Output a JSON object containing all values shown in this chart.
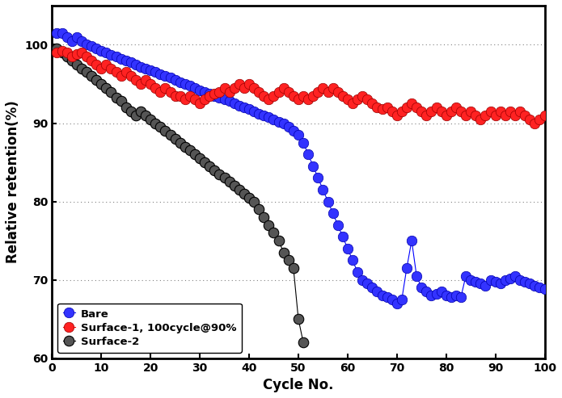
{
  "title": "",
  "xlabel": "Cycle No.",
  "ylabel": "Relative retention(%)",
  "xlim": [
    0,
    100
  ],
  "ylim": [
    60,
    105
  ],
  "yticks": [
    60,
    70,
    80,
    90,
    100
  ],
  "xticks": [
    0,
    10,
    20,
    30,
    40,
    50,
    60,
    70,
    80,
    90,
    100
  ],
  "legend_labels": [
    "Bare",
    "Surface-1, 100cycle@90%",
    "Surface-2"
  ],
  "bare_x": [
    1,
    2,
    3,
    4,
    5,
    6,
    7,
    8,
    9,
    10,
    11,
    12,
    13,
    14,
    15,
    16,
    17,
    18,
    19,
    20,
    21,
    22,
    23,
    24,
    25,
    26,
    27,
    28,
    29,
    30,
    31,
    32,
    33,
    34,
    35,
    36,
    37,
    38,
    39,
    40,
    41,
    42,
    43,
    44,
    45,
    46,
    47,
    48,
    49,
    50,
    51,
    52,
    53,
    54,
    55,
    56,
    57,
    58,
    59,
    60,
    61,
    62,
    63,
    64,
    65,
    66,
    67,
    68,
    69,
    70,
    71,
    72,
    73,
    74,
    75,
    76,
    77,
    78,
    79,
    80,
    81,
    82,
    83,
    84,
    85,
    86,
    87,
    88,
    89,
    90,
    91,
    92,
    93,
    94,
    95,
    96,
    97,
    98,
    99,
    100
  ],
  "bare_y": [
    101.5,
    101.5,
    101.0,
    100.5,
    101.0,
    100.5,
    100.0,
    99.8,
    99.5,
    99.2,
    99.0,
    98.7,
    98.5,
    98.2,
    98.0,
    97.8,
    97.5,
    97.2,
    97.0,
    96.7,
    96.5,
    96.2,
    96.0,
    95.8,
    95.5,
    95.2,
    95.0,
    94.8,
    94.5,
    94.2,
    94.0,
    93.8,
    93.5,
    93.2,
    93.0,
    92.8,
    92.5,
    92.2,
    92.0,
    91.8,
    91.5,
    91.2,
    91.0,
    90.8,
    90.5,
    90.2,
    90.0,
    89.5,
    89.0,
    88.5,
    87.5,
    86.0,
    84.5,
    83.0,
    81.5,
    80.0,
    78.5,
    77.0,
    75.5,
    74.0,
    72.5,
    71.0,
    70.0,
    69.5,
    69.0,
    68.5,
    68.0,
    67.8,
    67.5,
    67.0,
    67.5,
    71.5,
    75.0,
    70.5,
    69.0,
    68.5,
    68.0,
    68.2,
    68.5,
    68.0,
    67.8,
    68.0,
    67.8,
    70.5,
    70.0,
    69.8,
    69.5,
    69.2,
    70.0,
    69.8,
    69.5,
    70.0,
    70.2,
    70.5,
    70.0,
    69.8,
    69.5,
    69.2,
    69.0,
    68.8
  ],
  "surface1_x": [
    1,
    2,
    3,
    4,
    5,
    6,
    7,
    8,
    9,
    10,
    11,
    12,
    13,
    14,
    15,
    16,
    17,
    18,
    19,
    20,
    21,
    22,
    23,
    24,
    25,
    26,
    27,
    28,
    29,
    30,
    31,
    32,
    33,
    34,
    35,
    36,
    37,
    38,
    39,
    40,
    41,
    42,
    43,
    44,
    45,
    46,
    47,
    48,
    49,
    50,
    51,
    52,
    53,
    54,
    55,
    56,
    57,
    58,
    59,
    60,
    61,
    62,
    63,
    64,
    65,
    66,
    67,
    68,
    69,
    70,
    71,
    72,
    73,
    74,
    75,
    76,
    77,
    78,
    79,
    80,
    81,
    82,
    83,
    84,
    85,
    86,
    87,
    88,
    89,
    90,
    91,
    92,
    93,
    94,
    95,
    96,
    97,
    98,
    99,
    100
  ],
  "surface1_y": [
    99.0,
    99.2,
    99.0,
    98.5,
    98.8,
    99.0,
    98.5,
    98.0,
    97.5,
    97.0,
    97.5,
    97.0,
    96.5,
    96.0,
    96.5,
    96.0,
    95.5,
    95.0,
    95.5,
    95.0,
    94.5,
    94.0,
    94.5,
    94.0,
    93.5,
    93.5,
    93.0,
    93.5,
    93.0,
    92.5,
    93.0,
    93.5,
    93.8,
    94.0,
    94.5,
    94.0,
    94.5,
    95.0,
    94.5,
    95.0,
    94.5,
    94.0,
    93.5,
    93.0,
    93.5,
    94.0,
    94.5,
    94.0,
    93.5,
    93.0,
    93.5,
    93.0,
    93.5,
    94.0,
    94.5,
    94.0,
    94.5,
    94.0,
    93.5,
    93.0,
    92.5,
    93.0,
    93.5,
    93.0,
    92.5,
    92.0,
    91.8,
    92.0,
    91.5,
    91.0,
    91.5,
    92.0,
    92.5,
    92.0,
    91.5,
    91.0,
    91.5,
    92.0,
    91.5,
    91.0,
    91.5,
    92.0,
    91.5,
    91.0,
    91.5,
    91.0,
    90.5,
    91.0,
    91.5,
    91.0,
    91.5,
    91.0,
    91.5,
    91.0,
    91.5,
    91.0,
    90.5,
    90.0,
    90.5,
    91.0
  ],
  "surface2_x": [
    1,
    2,
    3,
    4,
    5,
    6,
    7,
    8,
    9,
    10,
    11,
    12,
    13,
    14,
    15,
    16,
    17,
    18,
    19,
    20,
    21,
    22,
    23,
    24,
    25,
    26,
    27,
    28,
    29,
    30,
    31,
    32,
    33,
    34,
    35,
    36,
    37,
    38,
    39,
    40,
    41,
    42,
    43,
    44,
    45,
    46,
    47,
    48,
    49,
    50,
    51
  ],
  "surface2_y": [
    99.5,
    99.0,
    98.5,
    98.0,
    97.5,
    97.0,
    96.5,
    96.0,
    95.5,
    95.0,
    94.5,
    94.0,
    93.2,
    92.8,
    92.0,
    91.5,
    91.0,
    91.5,
    91.0,
    90.5,
    90.0,
    89.5,
    89.0,
    88.5,
    88.0,
    87.5,
    87.0,
    86.5,
    86.0,
    85.5,
    85.0,
    84.5,
    84.0,
    83.5,
    83.0,
    82.5,
    82.0,
    81.5,
    81.0,
    80.5,
    80.0,
    79.0,
    78.0,
    77.0,
    76.0,
    75.0,
    73.5,
    72.5,
    71.5,
    65.0,
    62.0
  ]
}
